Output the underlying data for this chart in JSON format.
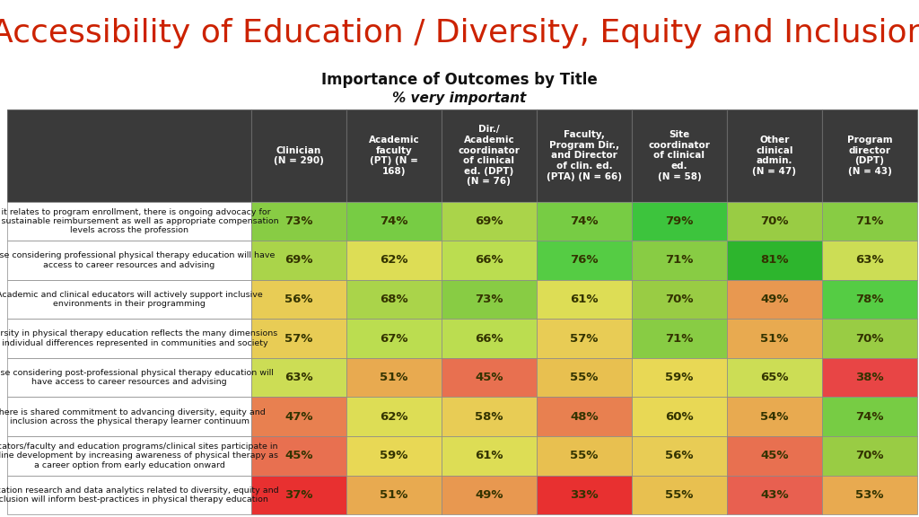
{
  "title": "Accessibility of Education / Diversity, Equity and Inclusion",
  "subtitle1": "Importance of Outcomes by Title",
  "subtitle2": "% very important",
  "title_color": "#cc2200",
  "col_headers": [
    "Clinician\n(N = 290)",
    "Academic\nfaculty\n(PT) (N =\n168)",
    "Dir./\nAcademic\ncoordinator\nof clinical\ned. (DPT)\n(N = 76)",
    "Faculty,\nProgram Dir.,\nand Director\nof clin. ed.\n(PTA) (N = 66)",
    "Site\ncoordinator\nof clinical\ned.\n(N = 58)",
    "Other\nclinical\nadmin.\n(N = 47)",
    "Program\ndirector\n(DPT)\n(N = 43)"
  ],
  "row_labels": [
    "As it relates to program enrollment, there is ongoing advocacy for\nboth sustainable reimbursement as well as appropriate compensation\nlevels across the profession",
    "Those considering professional physical therapy education will have\naccess to career resources and advising",
    "Academic and clinical educators will actively support inclusive\nenvironments in their programming",
    "Diversity in physical therapy education reflects the many dimensions\nof individual differences represented in communities and society",
    "Those considering post-professional physical therapy education will\nhave access to career resources and advising",
    "There is shared commitment to advancing diversity, equity and\ninclusion across the physical therapy learner continuum",
    "Educators/faculty and education programs/clinical sites participate in\npipeline development by increasing awareness of physical therapy as\na career option from early education onward",
    "Education research and data analytics related to diversity, equity and\ninclusion will inform best-practices in physical therapy education"
  ],
  "values": [
    [
      73,
      74,
      69,
      74,
      79,
      70,
      71
    ],
    [
      69,
      62,
      66,
      76,
      71,
      81,
      63
    ],
    [
      56,
      68,
      73,
      61,
      70,
      49,
      78
    ],
    [
      57,
      67,
      66,
      57,
      71,
      51,
      70
    ],
    [
      63,
      51,
      45,
      55,
      59,
      65,
      38
    ],
    [
      47,
      62,
      58,
      48,
      60,
      54,
      74
    ],
    [
      45,
      59,
      61,
      55,
      56,
      45,
      70
    ],
    [
      37,
      51,
      49,
      33,
      55,
      43,
      53
    ]
  ],
  "header_bg": "#3a3a3a",
  "header_text_color": "#ffffff",
  "border_color": "#888888",
  "value_text_color": "#333300",
  "background_color": "#ffffff",
  "title_fontsize": 26,
  "subtitle1_fontsize": 12,
  "subtitle2_fontsize": 11,
  "header_fontsize": 7.5,
  "row_label_fontsize": 6.8,
  "value_fontsize": 9.5
}
